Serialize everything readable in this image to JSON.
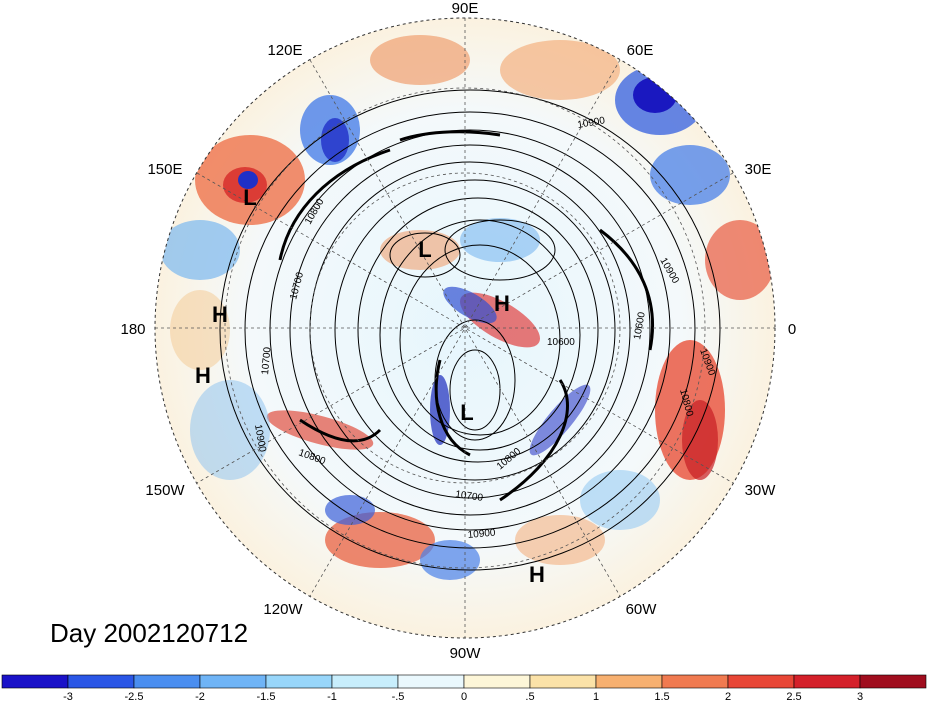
{
  "title": "Day 2002120712",
  "longitude_labels": [
    "90E",
    "60E",
    "30E",
    "0",
    "30W",
    "60W",
    "90W",
    "120W",
    "150W",
    "180",
    "150E",
    "120E"
  ],
  "pressure_centers": [
    "L",
    "L",
    "H",
    "H",
    "H",
    "L",
    "H"
  ],
  "contour_labels": [
    "10900",
    "10800",
    "10700",
    "10900",
    "10800",
    "10700",
    "10600",
    "10900",
    "10800",
    "10600",
    "10900",
    "10700",
    "10800",
    "10900"
  ],
  "colorbar": {
    "ticks": [
      "-3",
      "-2.5",
      "-2",
      "-1.5",
      "-1",
      "-.5",
      "0",
      ".5",
      "1",
      "1.5",
      "2",
      "2.5",
      "3"
    ],
    "colors": [
      "#1a12c8",
      "#2a56e6",
      "#4a8ef0",
      "#6fb4f6",
      "#98d6fa",
      "#c8eefc",
      "#eaf8fd",
      "#fdf6d8",
      "#fbe2a8",
      "#f7b070",
      "#f07a50",
      "#e84636",
      "#d4202a",
      "#a00d1e"
    ]
  }
}
